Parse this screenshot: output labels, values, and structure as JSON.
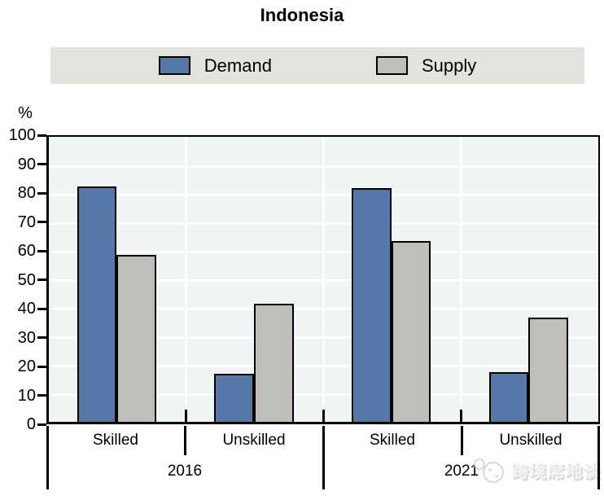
{
  "title": "Indonesia",
  "axis": {
    "unit_label": "%"
  },
  "legend": {
    "items": [
      {
        "label": "Demand",
        "color": "#5578a9"
      },
      {
        "label": "Supply",
        "color": "#bfbfba"
      }
    ]
  },
  "chart_data": {
    "type": "bar",
    "title": "Indonesia",
    "xlabel": "",
    "ylabel": "%",
    "ylim": [
      0,
      100
    ],
    "yticks": [
      0,
      10,
      20,
      30,
      40,
      50,
      60,
      70,
      80,
      90,
      100
    ],
    "grid": true,
    "legend_position": "top",
    "plot_bg": "#eff4f4",
    "gridline_color": "#ffffff",
    "groups": [
      "2016",
      "2021"
    ],
    "categories": [
      "Skilled",
      "Unskilled",
      "Skilled",
      "Unskilled"
    ],
    "series": [
      {
        "name": "Demand",
        "color": "#5578a9",
        "values": [
          82.5,
          17.0,
          82.0,
          17.5
        ]
      },
      {
        "name": "Supply",
        "color": "#bfbfba",
        "values": [
          58.5,
          41.5,
          63.5,
          36.5
        ]
      }
    ]
  },
  "watermark": {
    "text": "跨境席地谈",
    "logo": "chat-bubble-doodle-logo"
  }
}
